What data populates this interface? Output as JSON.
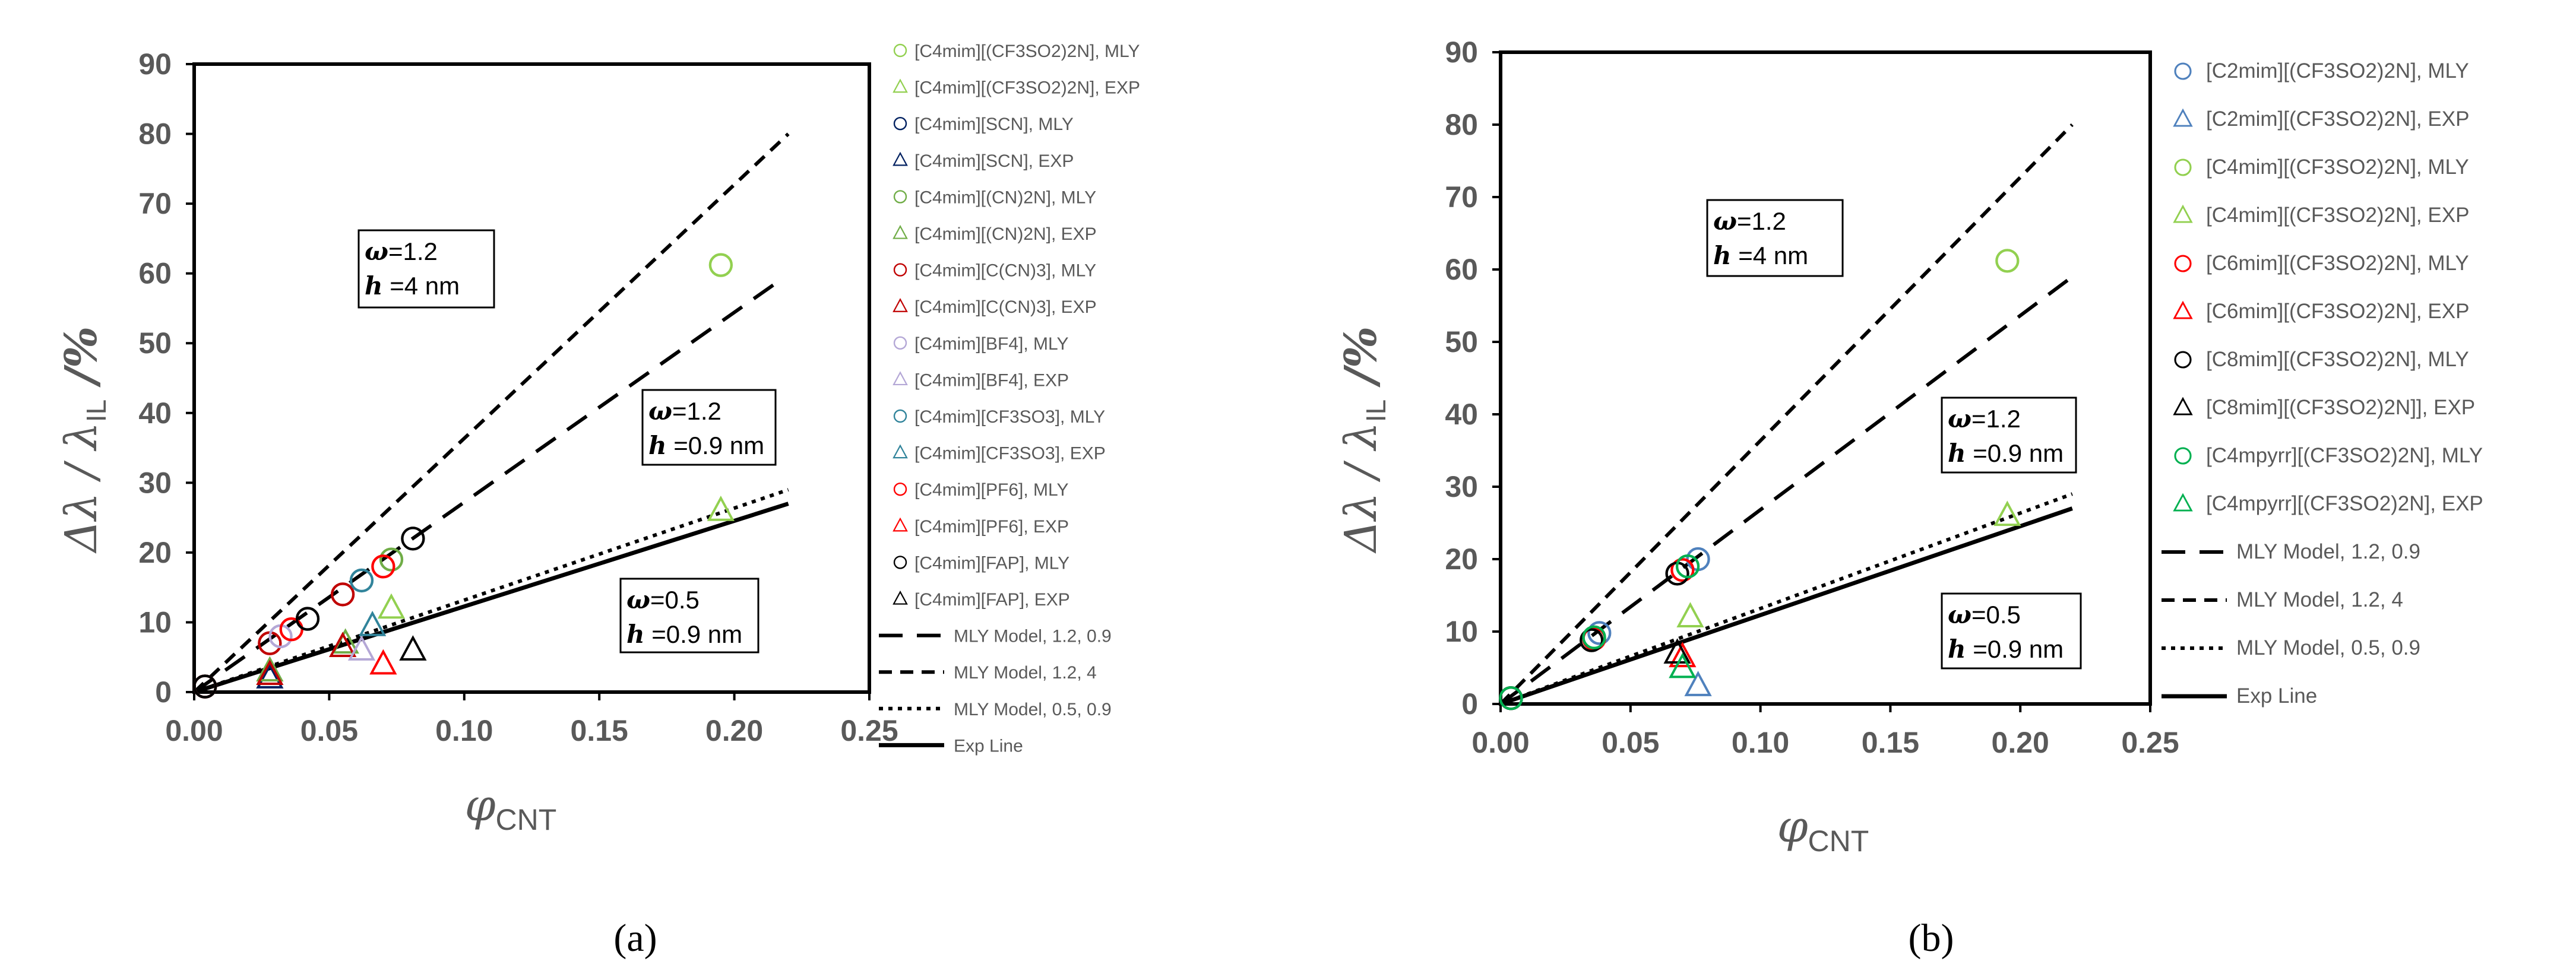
{
  "chart_data": [
    {
      "type": "scatter",
      "panel": "a",
      "caption": "(a)",
      "xlabel": "φ",
      "xlabel_sub": "CNT",
      "ylabel": "Δλ / λ",
      "ylabel_sub": "IL",
      "ylabel_suffix": " /%",
      "xlim": [
        0,
        0.25
      ],
      "ylim": [
        0,
        90
      ],
      "xticks": [
        "0.00",
        "0.05",
        "0.10",
        "0.15",
        "0.20",
        "0.25"
      ],
      "yticks": [
        "0",
        "10",
        "20",
        "30",
        "40",
        "50",
        "60",
        "70",
        "80",
        "90"
      ],
      "annotations": [
        {
          "omega_label": "ω",
          "omega": "=1.2",
          "h_label": "h",
          "h": " =4 nm"
        },
        {
          "omega_label": "ω",
          "omega": "=1.2",
          "h_label": "h",
          "h": " =0.9 nm"
        },
        {
          "omega_label": "ω",
          "omega": "=0.5",
          "h_label": "h",
          "h": " =0.9 nm"
        }
      ],
      "series": [
        {
          "name": "[C4mim][(CF3SO2)2N], MLY",
          "marker": "circle",
          "color": "#92d050",
          "points": [
            [
              0.004,
              0.8
            ],
            [
              0.195,
              61.2
            ]
          ]
        },
        {
          "name": "[C4mim][(CF3SO2)2N], EXP",
          "marker": "triangle",
          "color": "#92d050",
          "points": [
            [
              0.073,
              12.0
            ],
            [
              0.195,
              26.0
            ]
          ]
        },
        {
          "name": "[C4mim][SCN], MLY",
          "marker": "circle",
          "color": "#002060",
          "points": [
            [
              0.004,
              0.8
            ]
          ]
        },
        {
          "name": "[C4mim][SCN], EXP",
          "marker": "triangle",
          "color": "#002060",
          "points": [
            [
              0.028,
              2.0
            ]
          ]
        },
        {
          "name": "[C4mim][(CN)2N], MLY",
          "marker": "circle",
          "color": "#70ad47",
          "points": [
            [
              0.004,
              0.8
            ],
            [
              0.073,
              19.0
            ]
          ]
        },
        {
          "name": "[C4mim][(CN)2N], EXP",
          "marker": "triangle",
          "color": "#70ad47",
          "points": [
            [
              0.028,
              3.0
            ],
            [
              0.056,
              7.0
            ]
          ]
        },
        {
          "name": "[C4mim][C(CN)3], MLY",
          "marker": "circle",
          "color": "#c00000",
          "points": [
            [
              0.004,
              0.8
            ],
            [
              0.028,
              7.0
            ],
            [
              0.055,
              14.0
            ]
          ]
        },
        {
          "name": "[C4mim][C(CN)3], EXP",
          "marker": "triangle",
          "color": "#c00000",
          "points": [
            [
              0.028,
              2.5
            ],
            [
              0.055,
              6.5
            ]
          ]
        },
        {
          "name": "[C4mim][BF4], MLY",
          "marker": "circle",
          "color": "#b4a7d6",
          "points": [
            [
              0.004,
              0.8
            ],
            [
              0.032,
              8.0
            ]
          ]
        },
        {
          "name": "[C4mim][BF4], EXP",
          "marker": "triangle",
          "color": "#b4a7d6",
          "points": [
            [
              0.062,
              6.0
            ]
          ]
        },
        {
          "name": "[C4mim][CF3SO3], MLY",
          "marker": "circle",
          "color": "#31849b",
          "points": [
            [
              0.004,
              0.8
            ],
            [
              0.062,
              16.0
            ]
          ]
        },
        {
          "name": "[C4mim][CF3SO3], EXP",
          "marker": "triangle",
          "color": "#31849b",
          "points": [
            [
              0.066,
              9.5
            ]
          ]
        },
        {
          "name": "[C4mim][PF6], MLY",
          "marker": "circle",
          "color": "#ff0000",
          "points": [
            [
              0.004,
              0.8
            ],
            [
              0.036,
              9.0
            ],
            [
              0.07,
              18.0
            ]
          ]
        },
        {
          "name": "[C4mim][PF6], EXP",
          "marker": "triangle",
          "color": "#ff0000",
          "points": [
            [
              0.07,
              4.0
            ]
          ]
        },
        {
          "name": "[C4mim][FAP], MLY",
          "marker": "circle",
          "color": "#000000",
          "points": [
            [
              0.004,
              0.8
            ],
            [
              0.042,
              10.5
            ],
            [
              0.081,
              22.0
            ]
          ]
        },
        {
          "name": "[C4mim][FAP], EXP",
          "marker": "triangle",
          "color": "#000000",
          "points": [
            [
              0.081,
              6.0
            ]
          ]
        }
      ],
      "lines": [
        {
          "name": "MLY Model, 1.2, 0.9",
          "style": "longdash",
          "points": [
            [
              0,
              0
            ],
            [
              0.215,
              58.5
            ]
          ]
        },
        {
          "name": "MLY Model, 1.2, 4",
          "style": "dash",
          "points": [
            [
              0,
              0
            ],
            [
              0.22,
              80.0
            ]
          ]
        },
        {
          "name": "MLY Model, 0.5, 0.9",
          "style": "dot",
          "points": [
            [
              0,
              0
            ],
            [
              0.22,
              29.0
            ]
          ]
        },
        {
          "name": "Exp Line",
          "style": "solid",
          "points": [
            [
              0,
              0
            ],
            [
              0.22,
              27.0
            ]
          ]
        }
      ]
    },
    {
      "type": "scatter",
      "panel": "b",
      "caption": "(b)",
      "xlabel": "φ",
      "xlabel_sub": "CNT",
      "ylabel": "Δλ / λ",
      "ylabel_sub": "IL",
      "ylabel_suffix": " /%",
      "xlim": [
        0,
        0.25
      ],
      "ylim": [
        0,
        90
      ],
      "xticks": [
        "0.00",
        "0.05",
        "0.10",
        "0.15",
        "0.20",
        "0.25"
      ],
      "yticks": [
        "0",
        "10",
        "20",
        "30",
        "40",
        "50",
        "60",
        "70",
        "80",
        "90"
      ],
      "annotations": [
        {
          "omega_label": "ω",
          "omega": "=1.2",
          "h_label": "h",
          "h": " =4 nm"
        },
        {
          "omega_label": "ω",
          "omega": "=1.2",
          "h_label": "h",
          "h": " =0.9 nm"
        },
        {
          "omega_label": "ω",
          "omega": "=0.5",
          "h_label": "h",
          "h": " =0.9 nm"
        }
      ],
      "series": [
        {
          "name": "[C2mim][(CF3SO2)2N], MLY",
          "marker": "circle",
          "color": "#4f81bd",
          "points": [
            [
              0.004,
              0.8
            ],
            [
              0.038,
              9.8
            ],
            [
              0.076,
              20.0
            ]
          ]
        },
        {
          "name": "[C2mim][(CF3SO2)2N], EXP",
          "marker": "triangle",
          "color": "#4f81bd",
          "points": [
            [
              0.076,
              2.5
            ]
          ]
        },
        {
          "name": "[C4mim][(CF3SO2)2N], MLY",
          "marker": "circle",
          "color": "#92d050",
          "points": [
            [
              0.195,
              61.2
            ]
          ]
        },
        {
          "name": "[C4mim][(CF3SO2)2N], EXP",
          "marker": "triangle",
          "color": "#92d050",
          "points": [
            [
              0.073,
              12.0
            ],
            [
              0.195,
              26.0
            ]
          ]
        },
        {
          "name": "[C6mim][(CF3SO2)2N], MLY",
          "marker": "circle",
          "color": "#ff0000",
          "points": [
            [
              0.004,
              0.8
            ],
            [
              0.036,
              9.0
            ],
            [
              0.07,
              18.5
            ]
          ]
        },
        {
          "name": "[C6mim][(CF3SO2)2N], EXP",
          "marker": "triangle",
          "color": "#ff0000",
          "points": [
            [
              0.07,
              6.5
            ]
          ]
        },
        {
          "name": "[C8mim][(CF3SO2)2N], MLY",
          "marker": "circle",
          "color": "#000000",
          "points": [
            [
              0.004,
              0.8
            ],
            [
              0.035,
              8.8
            ],
            [
              0.068,
              18.0
            ]
          ]
        },
        {
          "name": "[C8mim][(CF3SO2)2N]], EXP",
          "marker": "triangle",
          "color": "#000000",
          "points": [
            [
              0.068,
              7.0
            ]
          ]
        },
        {
          "name": "[C4mpyrr][(CF3SO2)2N], MLY",
          "marker": "circle",
          "color": "#00b050",
          "points": [
            [
              0.004,
              0.8
            ],
            [
              0.036,
              9.2
            ],
            [
              0.072,
              19.0
            ]
          ]
        },
        {
          "name": "[C4mpyrr][(CF3SO2)2N], EXP",
          "marker": "triangle",
          "color": "#00b050",
          "points": [
            [
              0.07,
              5.0
            ]
          ]
        }
      ],
      "lines": [
        {
          "name": "MLY Model, 1.2, 0.9",
          "style": "longdash",
          "points": [
            [
              0,
              0
            ],
            [
              0.22,
              59.0
            ]
          ]
        },
        {
          "name": "MLY Model, 1.2, 4",
          "style": "dash",
          "points": [
            [
              0,
              0
            ],
            [
              0.22,
              80.0
            ]
          ]
        },
        {
          "name": "MLY Model, 0.5, 0.9",
          "style": "dot",
          "points": [
            [
              0,
              0
            ],
            [
              0.22,
              29.0
            ]
          ]
        },
        {
          "name": "Exp Line",
          "style": "solid",
          "points": [
            [
              0,
              0
            ],
            [
              0.22,
              27.0
            ]
          ]
        }
      ]
    }
  ]
}
